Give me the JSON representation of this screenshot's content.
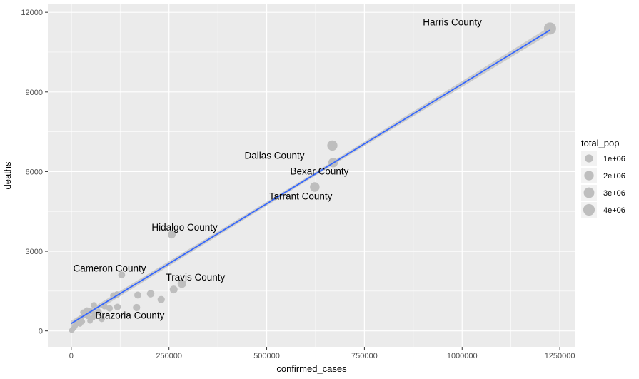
{
  "chart_data": {
    "type": "scatter",
    "xlabel": "confirmed_cases",
    "ylabel": "deaths",
    "xlim": [
      -60000,
      1290000
    ],
    "ylim": [
      -600,
      12300
    ],
    "x_ticks": [
      0,
      250000,
      500000,
      750000,
      1000000,
      1250000
    ],
    "x_tick_labels": [
      "0",
      "250000",
      "500000",
      "750000",
      "1000000",
      "1250000"
    ],
    "y_ticks": [
      0,
      3000,
      6000,
      9000,
      12000
    ],
    "y_tick_labels": [
      "0",
      "3000",
      "6000",
      "9000",
      "12000"
    ],
    "grid": true,
    "legend": {
      "title": "total_pop",
      "position": "right",
      "entries": [
        {
          "label": "1e+06",
          "value": 1000000
        },
        {
          "label": "2e+06",
          "value": 2000000
        },
        {
          "label": "3e+06",
          "value": 3000000
        },
        {
          "label": "4e+06",
          "value": 4000000
        }
      ]
    },
    "trend_line": {
      "x": [
        0,
        1225000
      ],
      "y": [
        280,
        11330
      ]
    },
    "points": [
      {
        "x": 1225000,
        "y": 11390,
        "size": 4700000,
        "label": "Harris County",
        "label_x": 975000,
        "label_y": 11600
      },
      {
        "x": 668000,
        "y": 6980,
        "size": 2600000,
        "label": "Dallas County",
        "label_x": 520000,
        "label_y": 6580
      },
      {
        "x": 670000,
        "y": 6340,
        "size": 2000000,
        "label": "Bexar County",
        "label_x": 635000,
        "label_y": 5980
      },
      {
        "x": 623000,
        "y": 5420,
        "size": 2100000,
        "label": "Tarrant County",
        "label_x": 587000,
        "label_y": 5050
      },
      {
        "x": 257000,
        "y": 3630,
        "size": 870000,
        "label": "Hidalgo County",
        "label_x": 290000,
        "label_y": 3870
      },
      {
        "x": 129000,
        "y": 2110,
        "size": 420000,
        "label": "Cameron County",
        "label_x": 98000,
        "label_y": 2330
      },
      {
        "x": 283000,
        "y": 1780,
        "size": 1300000,
        "label": "Travis County",
        "label_x": 318000,
        "label_y": 2000
      },
      {
        "x": 45000,
        "y": 740,
        "size": 370000,
        "label": "Brazoria County",
        "label_x": 150000,
        "label_y": 560
      },
      {
        "x": 262000,
        "y": 1560,
        "size": 900000
      },
      {
        "x": 203000,
        "y": 1400,
        "size": 700000
      },
      {
        "x": 230000,
        "y": 1180,
        "size": 600000
      },
      {
        "x": 170000,
        "y": 1350,
        "size": 500000
      },
      {
        "x": 167000,
        "y": 880,
        "size": 600000
      },
      {
        "x": 108000,
        "y": 1330,
        "size": 400000
      },
      {
        "x": 117000,
        "y": 1370,
        "size": 300000
      },
      {
        "x": 118000,
        "y": 900,
        "size": 400000
      },
      {
        "x": 98000,
        "y": 850,
        "size": 300000
      },
      {
        "x": 85000,
        "y": 930,
        "size": 250000
      },
      {
        "x": 78000,
        "y": 450,
        "size": 250000
      },
      {
        "x": 58000,
        "y": 970,
        "size": 200000
      },
      {
        "x": 70000,
        "y": 720,
        "size": 200000
      },
      {
        "x": 60000,
        "y": 620,
        "size": 150000
      },
      {
        "x": 50000,
        "y": 730,
        "size": 150000
      },
      {
        "x": 40000,
        "y": 780,
        "size": 120000
      },
      {
        "x": 35000,
        "y": 600,
        "size": 150000
      },
      {
        "x": 30000,
        "y": 700,
        "size": 100000
      },
      {
        "x": 25000,
        "y": 480,
        "size": 100000
      },
      {
        "x": 20000,
        "y": 420,
        "size": 100000
      },
      {
        "x": 18000,
        "y": 300,
        "size": 100000
      },
      {
        "x": 15000,
        "y": 320,
        "size": 80000
      },
      {
        "x": 12000,
        "y": 250,
        "size": 80000
      },
      {
        "x": 10000,
        "y": 190,
        "size": 60000
      },
      {
        "x": 8000,
        "y": 140,
        "size": 60000
      },
      {
        "x": 6000,
        "y": 100,
        "size": 50000
      },
      {
        "x": 4000,
        "y": 70,
        "size": 40000
      },
      {
        "x": 3000,
        "y": 50,
        "size": 40000
      },
      {
        "x": 2000,
        "y": 40,
        "size": 30000
      },
      {
        "x": 1000,
        "y": 20,
        "size": 30000
      },
      {
        "x": 28000,
        "y": 350,
        "size": 100000
      },
      {
        "x": 22000,
        "y": 260,
        "size": 80000
      },
      {
        "x": 42000,
        "y": 550,
        "size": 120000
      },
      {
        "x": 48000,
        "y": 380,
        "size": 100000
      },
      {
        "x": 55000,
        "y": 500,
        "size": 120000
      }
    ],
    "colors": {
      "panel": "#ebebeb",
      "grid": "#ffffff",
      "point": "#bebebe",
      "trend": "#3366ff",
      "ribbon": "#c8c8c8"
    }
  }
}
